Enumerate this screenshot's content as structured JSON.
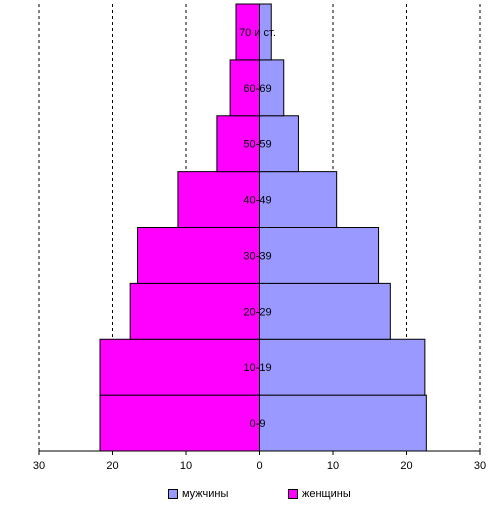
{
  "chart_data": {
    "type": "bar",
    "orientation": "horizontal",
    "subtype": "population-pyramid",
    "categories": [
      "0-9",
      "10-19",
      "20-29",
      "30-39",
      "40-49",
      "50-59",
      "60-69",
      "70 и ст."
    ],
    "series": [
      {
        "name": "мужчины",
        "color": "#9999ff",
        "side": "right",
        "values": [
          22.7,
          22.5,
          17.8,
          16.2,
          10.5,
          5.3,
          3.3,
          1.6
        ]
      },
      {
        "name": "женщины",
        "color": "#ff00ff",
        "side": "left",
        "values": [
          21.7,
          21.7,
          17.6,
          16.6,
          11.1,
          5.8,
          4.0,
          3.2
        ]
      }
    ],
    "xlim": [
      -30,
      30
    ],
    "x_ticks": [
      -30,
      -20,
      -10,
      0,
      10,
      20,
      30
    ],
    "x_tick_labels": [
      "30",
      "20",
      "10",
      "0",
      "10",
      "20",
      "30"
    ],
    "grid": "vertical-dashed",
    "legend_position": "bottom",
    "title": "",
    "xlabel": "",
    "ylabel": ""
  }
}
